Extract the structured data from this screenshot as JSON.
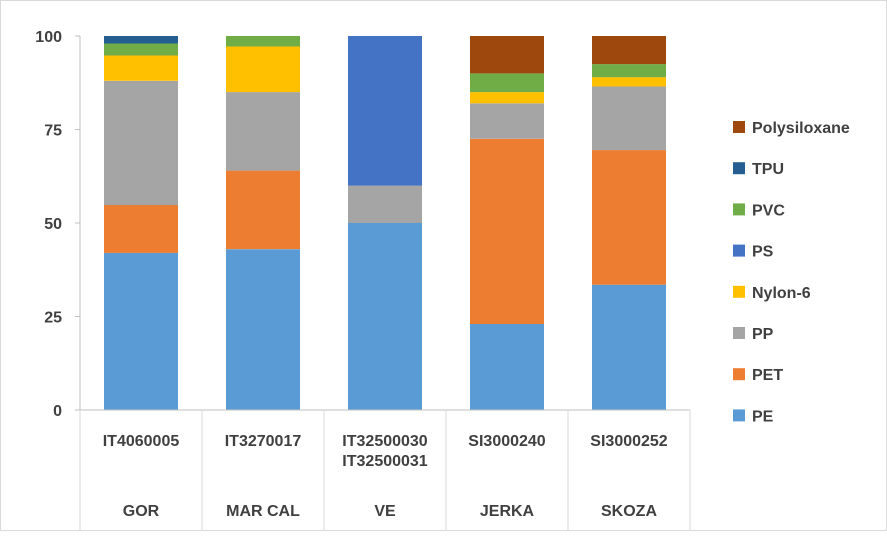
{
  "chart_data": {
    "type": "bar",
    "stacked": true,
    "categories": [
      {
        "codes": [
          "IT4060005"
        ],
        "group": "GOR"
      },
      {
        "codes": [
          "IT3270017"
        ],
        "group": "MAR CAL"
      },
      {
        "codes": [
          "IT32500030",
          "IT32500031"
        ],
        "group": "VE"
      },
      {
        "codes": [
          "SI3000240"
        ],
        "group": "JERKA"
      },
      {
        "codes": [
          "SI3000252"
        ],
        "group": "SKOZA"
      }
    ],
    "series": [
      {
        "name": "PE",
        "color": "#5B9BD5",
        "values": [
          42,
          43,
          50,
          23,
          33.5
        ]
      },
      {
        "name": "PET",
        "color": "#ED7D31",
        "values": [
          12.8,
          21,
          0,
          49.5,
          36
        ]
      },
      {
        "name": "PP",
        "color": "#A5A5A5",
        "values": [
          33.2,
          21,
          10,
          9.5,
          17
        ]
      },
      {
        "name": "Nylon-6",
        "color": "#FFC000",
        "values": [
          6.8,
          12.2,
          0,
          3,
          2.5
        ]
      },
      {
        "name": "PS",
        "color": "#4472C4",
        "values": [
          0,
          0,
          40,
          0,
          0
        ]
      },
      {
        "name": "PVC",
        "color": "#70AD47",
        "values": [
          3.2,
          2.8,
          0,
          5,
          3.5
        ]
      },
      {
        "name": "TPU",
        "color": "#255E91",
        "values": [
          2,
          0,
          0,
          0,
          0
        ]
      },
      {
        "name": "Polysiloxane",
        "color": "#9E480E",
        "values": [
          0,
          0,
          0,
          10,
          7.5
        ]
      }
    ],
    "yticks": [
      "0",
      "25",
      "50",
      "75",
      "100"
    ],
    "ylim": [
      0,
      100
    ],
    "legend_position": "right",
    "grid": false
  }
}
